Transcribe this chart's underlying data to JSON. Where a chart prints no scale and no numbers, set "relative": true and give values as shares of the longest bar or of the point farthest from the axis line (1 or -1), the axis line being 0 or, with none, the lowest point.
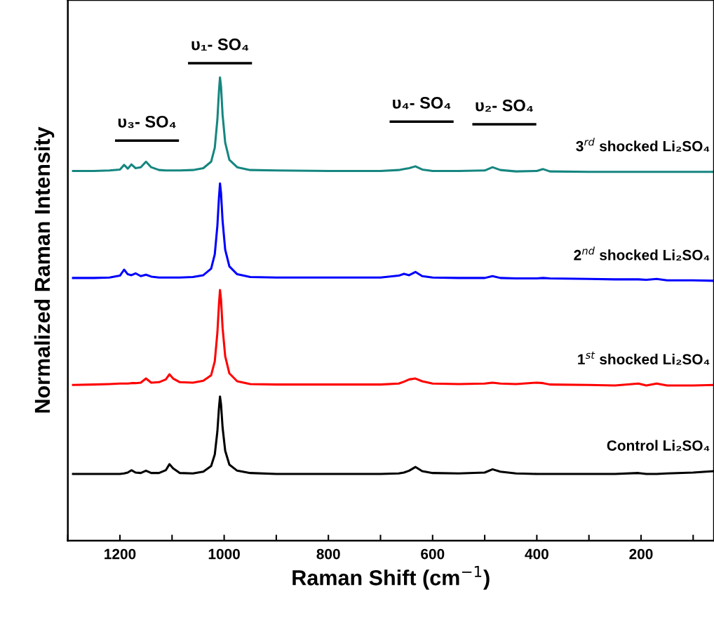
{
  "chart_data": {
    "type": "line",
    "relative": true,
    "xlabel": "Raman Shift (cm$^{−1}$)",
    "ylabel": "Normalized Raman Intensity",
    "xlim": [
      1300,
      60
    ],
    "xticks": [
      {
        "value": 1300,
        "label": null
      },
      1200,
      {
        "value": 1100,
        "label": null
      },
      1000,
      {
        "value": 900,
        "label": null
      },
      800,
      {
        "value": 700,
        "label": null
      },
      600,
      {
        "value": 500,
        "label": null
      },
      400,
      {
        "value": 300,
        "label": null
      },
      200,
      {
        "value": 100,
        "label": null
      }
    ],
    "x": [
      1290,
      1250,
      1220,
      1200,
      1192,
      1185,
      1178,
      1170,
      1160,
      1150,
      1140,
      1125,
      1112,
      1105,
      1098,
      1085,
      1060,
      1040,
      1025,
      1018,
      1013,
      1010,
      1008,
      1006,
      1003,
      998,
      990,
      975,
      950,
      900,
      800,
      700,
      665,
      655,
      645,
      633,
      620,
      600,
      550,
      500,
      485,
      470,
      440,
      400,
      388,
      375,
      300,
      250,
      205,
      190,
      170,
      150,
      100,
      62
    ],
    "series": [
      {
        "name": "Control Li₂SO₄",
        "color": "#000000",
        "values": [
          0.144,
          0.144,
          0.144,
          0.144,
          0.145,
          0.147,
          0.152,
          0.147,
          0.146,
          0.151,
          0.146,
          0.146,
          0.152,
          0.165,
          0.156,
          0.146,
          0.145,
          0.149,
          0.161,
          0.186,
          0.236,
          0.286,
          0.311,
          0.294,
          0.244,
          0.194,
          0.164,
          0.151,
          0.146,
          0.144,
          0.144,
          0.144,
          0.145,
          0.147,
          0.151,
          0.159,
          0.15,
          0.146,
          0.145,
          0.147,
          0.154,
          0.149,
          0.145,
          0.144,
          0.144,
          0.144,
          0.144,
          0.144,
          0.146,
          0.144,
          0.144,
          0.145,
          0.147,
          0.15
        ]
      },
      {
        "name": "1$^{st}$ shocked Li₂SO₄",
        "color": "#ff0000",
        "values": [
          0.336,
          0.337,
          0.338,
          0.339,
          0.339,
          0.339,
          0.34,
          0.34,
          0.341,
          0.35,
          0.341,
          0.342,
          0.348,
          0.359,
          0.35,
          0.342,
          0.341,
          0.345,
          0.357,
          0.387,
          0.449,
          0.51,
          0.541,
          0.52,
          0.459,
          0.398,
          0.361,
          0.344,
          0.338,
          0.337,
          0.337,
          0.337,
          0.339,
          0.343,
          0.348,
          0.35,
          0.344,
          0.339,
          0.338,
          0.339,
          0.341,
          0.339,
          0.338,
          0.341,
          0.34,
          0.337,
          0.336,
          0.335,
          0.339,
          0.335,
          0.339,
          0.335,
          0.335,
          0.336
        ]
      },
      {
        "name": "2$^{nd}$ shocked Li₂SO₄",
        "color": "#0000ff",
        "values": [
          0.567,
          0.567,
          0.568,
          0.572,
          0.585,
          0.575,
          0.573,
          0.577,
          0.571,
          0.574,
          0.57,
          0.568,
          0.568,
          0.568,
          0.568,
          0.568,
          0.569,
          0.573,
          0.587,
          0.618,
          0.68,
          0.74,
          0.771,
          0.75,
          0.69,
          0.628,
          0.592,
          0.575,
          0.569,
          0.568,
          0.568,
          0.568,
          0.572,
          0.576,
          0.573,
          0.58,
          0.571,
          0.568,
          0.567,
          0.567,
          0.571,
          0.567,
          0.566,
          0.566,
          0.567,
          0.566,
          0.565,
          0.564,
          0.564,
          0.563,
          0.565,
          0.562,
          0.562,
          0.561
        ]
      },
      {
        "name": "3$^{rd}$ shocked Li₂SO₄",
        "color": "#168680",
        "values": [
          0.798,
          0.798,
          0.799,
          0.801,
          0.811,
          0.803,
          0.812,
          0.804,
          0.806,
          0.818,
          0.806,
          0.8,
          0.799,
          0.799,
          0.799,
          0.799,
          0.8,
          0.804,
          0.818,
          0.848,
          0.909,
          0.97,
          1.0,
          0.98,
          0.919,
          0.859,
          0.822,
          0.806,
          0.8,
          0.799,
          0.798,
          0.798,
          0.8,
          0.802,
          0.804,
          0.808,
          0.801,
          0.798,
          0.798,
          0.799,
          0.806,
          0.8,
          0.797,
          0.798,
          0.802,
          0.797,
          0.796,
          0.796,
          0.796,
          0.796,
          0.796,
          0.796,
          0.796,
          0.796
        ]
      }
    ],
    "annotations": [
      "υ₃- SO₄",
      "υ₁- SO₄",
      "υ₄- SO₄",
      "υ₂- SO₄"
    ]
  }
}
